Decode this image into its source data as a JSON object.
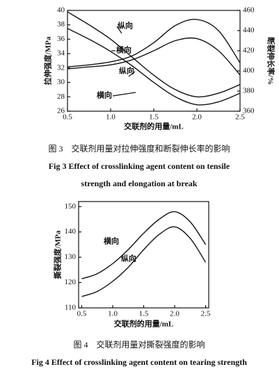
{
  "chart_data": [
    {
      "type": "line",
      "x_label": "交联剂的用量/mL",
      "y_label": "拉伸强度/MPa",
      "y2_label": "断裂伸长率/%",
      "x": [
        0.5,
        0.75,
        1.0,
        1.25,
        1.5,
        1.75,
        2.0,
        2.25,
        2.5
      ],
      "xlim": [
        0.5,
        2.5
      ],
      "xticks": [
        0.5,
        {
          "value": 1,
          "label": "1.0"
        },
        1.5,
        {
          "value": 2,
          "label": "2.0"
        },
        2.5
      ],
      "ylim": [
        26,
        40
      ],
      "yticks": [
        26,
        28,
        30,
        32,
        34,
        36,
        38,
        40
      ],
      "y2lim": [
        360,
        460
      ],
      "y2ticks": [
        360,
        380,
        400,
        420,
        440,
        460
      ],
      "series": [
        {
          "name": "纵向",
          "color": "#111111",
          "values": [
            39.8,
            38.0,
            36.0,
            33.5,
            31.0,
            29.0,
            28.0,
            28.5,
            29.7
          ]
        },
        {
          "name": "横向",
          "color": "#111111",
          "values": [
            37.5,
            36.0,
            34.3,
            32.3,
            30.0,
            28.0,
            26.9,
            27.3,
            28.5
          ]
        },
        {
          "name": "纵向",
          "color": "#111111",
          "axis": "y2",
          "values": [
            404,
            406,
            409,
            415,
            428,
            445,
            451,
            440,
            408
          ]
        },
        {
          "name": "横向",
          "color": "#111111",
          "axis": "y2",
          "values": [
            402,
            404,
            406,
            411,
            420,
            430,
            432,
            420,
            396
          ]
        }
      ],
      "caption": "图 3　交联剂用量对拉伸强度和断裂伸长率的影响",
      "caption_en": [
        "Fig 3 Effect of crosslinking agent content on tensile",
        "strength and elongation at break"
      ]
    },
    {
      "type": "line",
      "x_label": "交联剂的用量/mL",
      "y_label": "撕裂强度/MPa",
      "x": [
        0.5,
        0.75,
        1.0,
        1.25,
        1.5,
        1.75,
        2.0,
        2.25,
        2.5
      ],
      "xlim": [
        0.45,
        2.55
      ],
      "xticks": [
        0.5,
        {
          "value": 1,
          "label": "1.0"
        },
        1.5,
        {
          "value": 2,
          "label": "2.0"
        },
        2.5
      ],
      "ylim": [
        110,
        152
      ],
      "yticks": [
        110,
        120,
        130,
        140,
        150
      ],
      "series": [
        {
          "name": "横向",
          "color": "#111111",
          "values": [
            121.5,
            123.5,
            127.5,
            133,
            139.5,
            145,
            148,
            144,
            135
          ]
        },
        {
          "name": "纵向",
          "color": "#111111",
          "values": [
            114.5,
            116.5,
            120.5,
            126,
            133,
            139,
            142,
            137.5,
            128
          ]
        }
      ],
      "caption": "图 4　交联剂用量对撕裂强度的影响",
      "caption_en": [
        "Fig 4 Effect of crosslinking agent content on tearing strength"
      ]
    }
  ]
}
